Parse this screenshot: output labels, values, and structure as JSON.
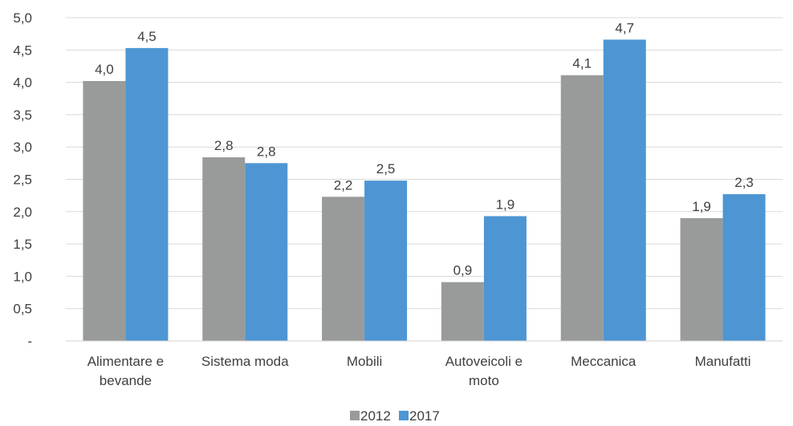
{
  "chart_data": {
    "type": "bar",
    "categories": [
      [
        "Alimentare e",
        "bevande"
      ],
      [
        "Sistema moda"
      ],
      [
        "Mobili"
      ],
      [
        "Autoveicoli e",
        "moto"
      ],
      [
        "Meccanica"
      ],
      [
        "Manufatti"
      ]
    ],
    "series": [
      {
        "name": "2012",
        "color": "#999b9b",
        "values": [
          4.02,
          2.84,
          2.23,
          0.91,
          4.11,
          1.9
        ],
        "labels": [
          "4,0",
          "2,8",
          "2,2",
          "0,9",
          "4,1",
          "1,9"
        ]
      },
      {
        "name": "2017",
        "color": "#4d96d3",
        "values": [
          4.53,
          2.75,
          2.48,
          1.93,
          4.66,
          2.27
        ],
        "labels": [
          "4,5",
          "2,8",
          "2,5",
          "1,9",
          "4,7",
          "2,3"
        ]
      }
    ],
    "ylim": [
      0,
      5
    ],
    "yticks": [
      0,
      0.5,
      1,
      1.5,
      2,
      2.5,
      3,
      3.5,
      4,
      4.5,
      5
    ],
    "ytick_labels": [
      "-",
      "0,5",
      "1,0",
      "1,5",
      "2,0",
      "2,5",
      "3,0",
      "3,5",
      "4,0",
      "4,5",
      "5,0"
    ],
    "grid": true,
    "legend_position": "bottom",
    "title": "",
    "xlabel": "",
    "ylabel": ""
  }
}
